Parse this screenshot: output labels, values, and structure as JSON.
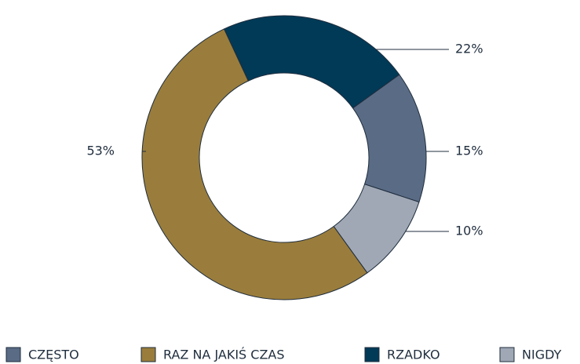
{
  "chart_data": {
    "type": "donut",
    "categories": [
      "CZĘSTO",
      "RAZ NA JAKIŚ CZAS",
      "RZADKO",
      "NIGDY"
    ],
    "values": [
      15,
      53,
      22,
      10
    ],
    "value_labels": [
      "15%",
      "53%",
      "22%",
      "10%"
    ],
    "colors": [
      "#5a6b85",
      "#9a7d3c",
      "#003a57",
      "#a0a8b5"
    ],
    "legend": "bottom"
  }
}
